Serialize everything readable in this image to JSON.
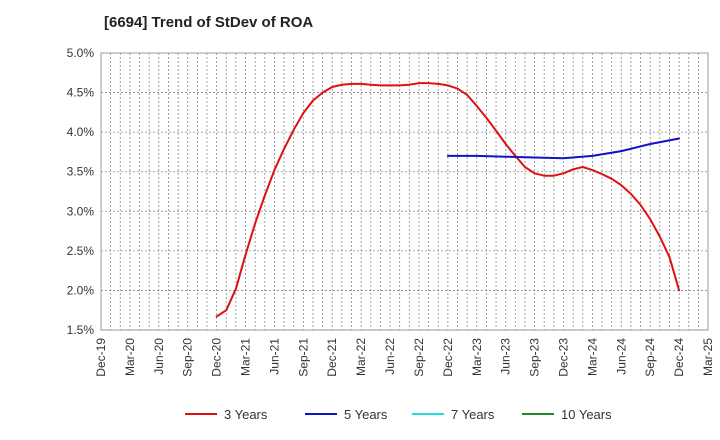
{
  "chart_data": {
    "type": "line",
    "title": "[6694]  Trend of StDev of ROA",
    "xlabel": "",
    "ylabel": "",
    "ylim": [
      1.5,
      5.0
    ],
    "y_ticks": [
      "5.0%",
      "4.5%",
      "4.0%",
      "3.5%",
      "3.0%",
      "2.5%",
      "2.0%",
      "1.5%"
    ],
    "y_tick_values": [
      5.0,
      4.5,
      4.0,
      3.5,
      3.0,
      2.5,
      2.0,
      1.5
    ],
    "x_ticks": [
      "Dec-19",
      "Mar-20",
      "Jun-20",
      "Sep-20",
      "Dec-20",
      "Mar-21",
      "Jun-21",
      "Sep-21",
      "Dec-21",
      "Mar-22",
      "Jun-22",
      "Sep-22",
      "Dec-22",
      "Mar-23",
      "Jun-23",
      "Sep-23",
      "Dec-23",
      "Mar-24",
      "Jun-24",
      "Sep-24",
      "Dec-24",
      "Mar-25"
    ],
    "grid": true,
    "legend_position": "bottom",
    "series": [
      {
        "name": "3 Years",
        "color": "#dd1111",
        "x": [
          "Dec-20",
          "Jan-21",
          "Feb-21",
          "Mar-21",
          "Apr-21",
          "May-21",
          "Jun-21",
          "Jul-21",
          "Aug-21",
          "Sep-21",
          "Oct-21",
          "Nov-21",
          "Dec-21",
          "Jan-22",
          "Feb-22",
          "Mar-22",
          "Apr-22",
          "May-22",
          "Jun-22",
          "Jul-22",
          "Aug-22",
          "Sep-22",
          "Oct-22",
          "Nov-22",
          "Dec-22",
          "Jan-23",
          "Feb-23",
          "Mar-23",
          "Apr-23",
          "May-23",
          "Jun-23",
          "Jul-23",
          "Aug-23",
          "Sep-23",
          "Oct-23",
          "Nov-23",
          "Dec-23",
          "Jan-24",
          "Feb-24",
          "Mar-24",
          "Apr-24",
          "May-24",
          "Jun-24",
          "Jul-24",
          "Aug-24",
          "Sep-24",
          "Oct-24",
          "Nov-24",
          "Dec-24"
        ],
        "values": [
          1.67,
          1.75,
          2.02,
          2.45,
          2.85,
          3.2,
          3.52,
          3.79,
          4.03,
          4.24,
          4.4,
          4.5,
          4.57,
          4.6,
          4.61,
          4.61,
          4.6,
          4.59,
          4.59,
          4.59,
          4.6,
          4.62,
          4.62,
          4.61,
          4.59,
          4.55,
          4.47,
          4.33,
          4.18,
          4.02,
          3.85,
          3.7,
          3.56,
          3.48,
          3.45,
          3.45,
          3.48,
          3.53,
          3.56,
          3.52,
          3.47,
          3.41,
          3.33,
          3.22,
          3.08,
          2.9,
          2.68,
          2.42,
          2.0
        ]
      },
      {
        "name": "5 Years",
        "color": "#1111cc",
        "x": [
          "Dec-22",
          "Mar-23",
          "Jun-23",
          "Sep-23",
          "Dec-23",
          "Mar-24",
          "Jun-24",
          "Sep-24",
          "Dec-24"
        ],
        "values": [
          3.7,
          3.7,
          3.69,
          3.68,
          3.67,
          3.7,
          3.76,
          3.85,
          3.92
        ]
      },
      {
        "name": "7 Years",
        "color": "#22dddd",
        "x": [],
        "values": []
      },
      {
        "name": "10 Years",
        "color": "#228822",
        "x": [],
        "values": []
      }
    ]
  }
}
